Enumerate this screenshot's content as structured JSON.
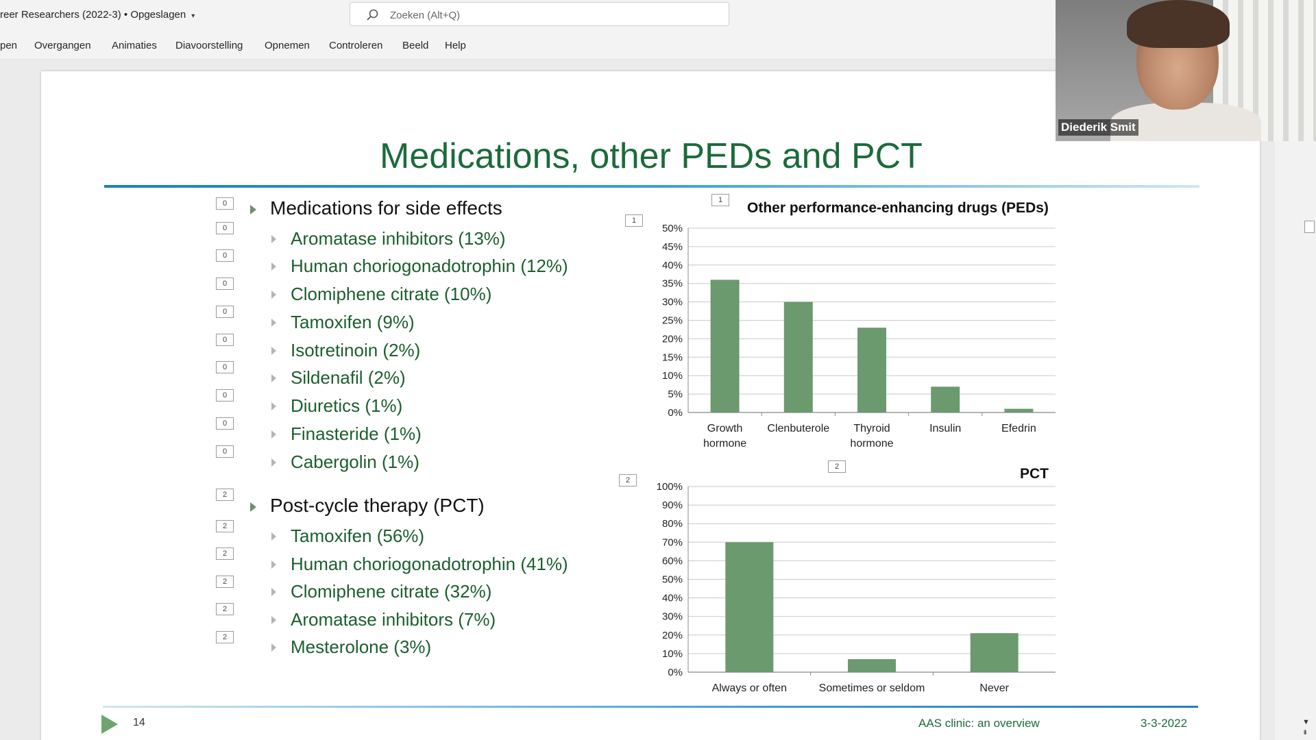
{
  "titlebar": {
    "doc_title": "reer Researchers (2022-3) • Opgeslagen",
    "caret": "▾",
    "search_placeholder": "Zoeken (Alt+Q)"
  },
  "ribbon": {
    "tabs": [
      "pen",
      "Overgangen",
      "Animaties",
      "Diavoorstelling",
      "Opnemen",
      "Controleren",
      "Beeld",
      "Help"
    ]
  },
  "video": {
    "participant_name": "Diederik Smit"
  },
  "slide": {
    "title": "Medications, other PEDs and PCT",
    "section1": {
      "heading": "Medications for side effects",
      "tag": "0",
      "items": [
        {
          "text": "Aromatase inhibitors (13%)",
          "tag": "0"
        },
        {
          "text": "Human choriogonadotrophin (12%)",
          "tag": "0"
        },
        {
          "text": "Clomiphene citrate (10%)",
          "tag": "0"
        },
        {
          "text": "Tamoxifen (9%)",
          "tag": "0"
        },
        {
          "text": "Isotretinoin (2%)",
          "tag": "0"
        },
        {
          "text": "Sildenafil (2%)",
          "tag": "0"
        },
        {
          "text": "Diuretics (1%)",
          "tag": "0"
        },
        {
          "text": "Finasteride (1%)",
          "tag": "0"
        },
        {
          "text": "Cabergolin (1%)",
          "tag": "0"
        }
      ]
    },
    "section2": {
      "heading": "Post-cycle therapy (PCT)",
      "tag": "2",
      "items": [
        {
          "text": "Tamoxifen (56%)",
          "tag": "2"
        },
        {
          "text": "Human choriogonadotrophin (41%)",
          "tag": "2"
        },
        {
          "text": "Clomiphene citrate (32%)",
          "tag": "2"
        },
        {
          "text": "Aromatase inhibitors (7%)",
          "tag": "2"
        },
        {
          "text": "Mesterolone (3%)",
          "tag": "2"
        }
      ]
    },
    "chart1_tags": [
      "1",
      "1"
    ],
    "chart2_tags": [
      "2",
      "2"
    ],
    "footer": {
      "slide_number": "14",
      "text": "AAS clinic: an overview",
      "date": "3-3-2022"
    }
  },
  "colors": {
    "bar": "#6b9a6f",
    "title_green": "#1b6b3a",
    "accent_blue": "#1f7fbf"
  },
  "chart_data": [
    {
      "type": "bar",
      "title": "Other performance-enhancing drugs (PEDs)",
      "categories": [
        "Growth hormone",
        "Clenbuterole",
        "Thyroid hormone",
        "Insulin",
        "Efedrin"
      ],
      "category_lines": [
        [
          "Growth",
          "hormone"
        ],
        [
          "Clenbuterole"
        ],
        [
          "Thyroid",
          "hormone"
        ],
        [
          "Insulin"
        ],
        [
          "Efedrin"
        ]
      ],
      "values": [
        36,
        30,
        23,
        7,
        1
      ],
      "yticks": [
        "0%",
        "5%",
        "10%",
        "15%",
        "20%",
        "25%",
        "30%",
        "35%",
        "40%",
        "45%",
        "50%"
      ],
      "ylim": [
        0,
        50
      ],
      "grid": true
    },
    {
      "type": "bar",
      "title": "PCT",
      "categories": [
        "Always or often",
        "Sometimes or seldom",
        "Never"
      ],
      "category_lines": [
        [
          "Always or often"
        ],
        [
          "Sometimes or seldom"
        ],
        [
          "Never"
        ]
      ],
      "values": [
        70,
        7,
        21
      ],
      "yticks": [
        "0%",
        "10%",
        "20%",
        "30%",
        "40%",
        "50%",
        "60%",
        "70%",
        "80%",
        "90%",
        "100%"
      ],
      "ylim": [
        0,
        100
      ],
      "grid": true
    }
  ]
}
